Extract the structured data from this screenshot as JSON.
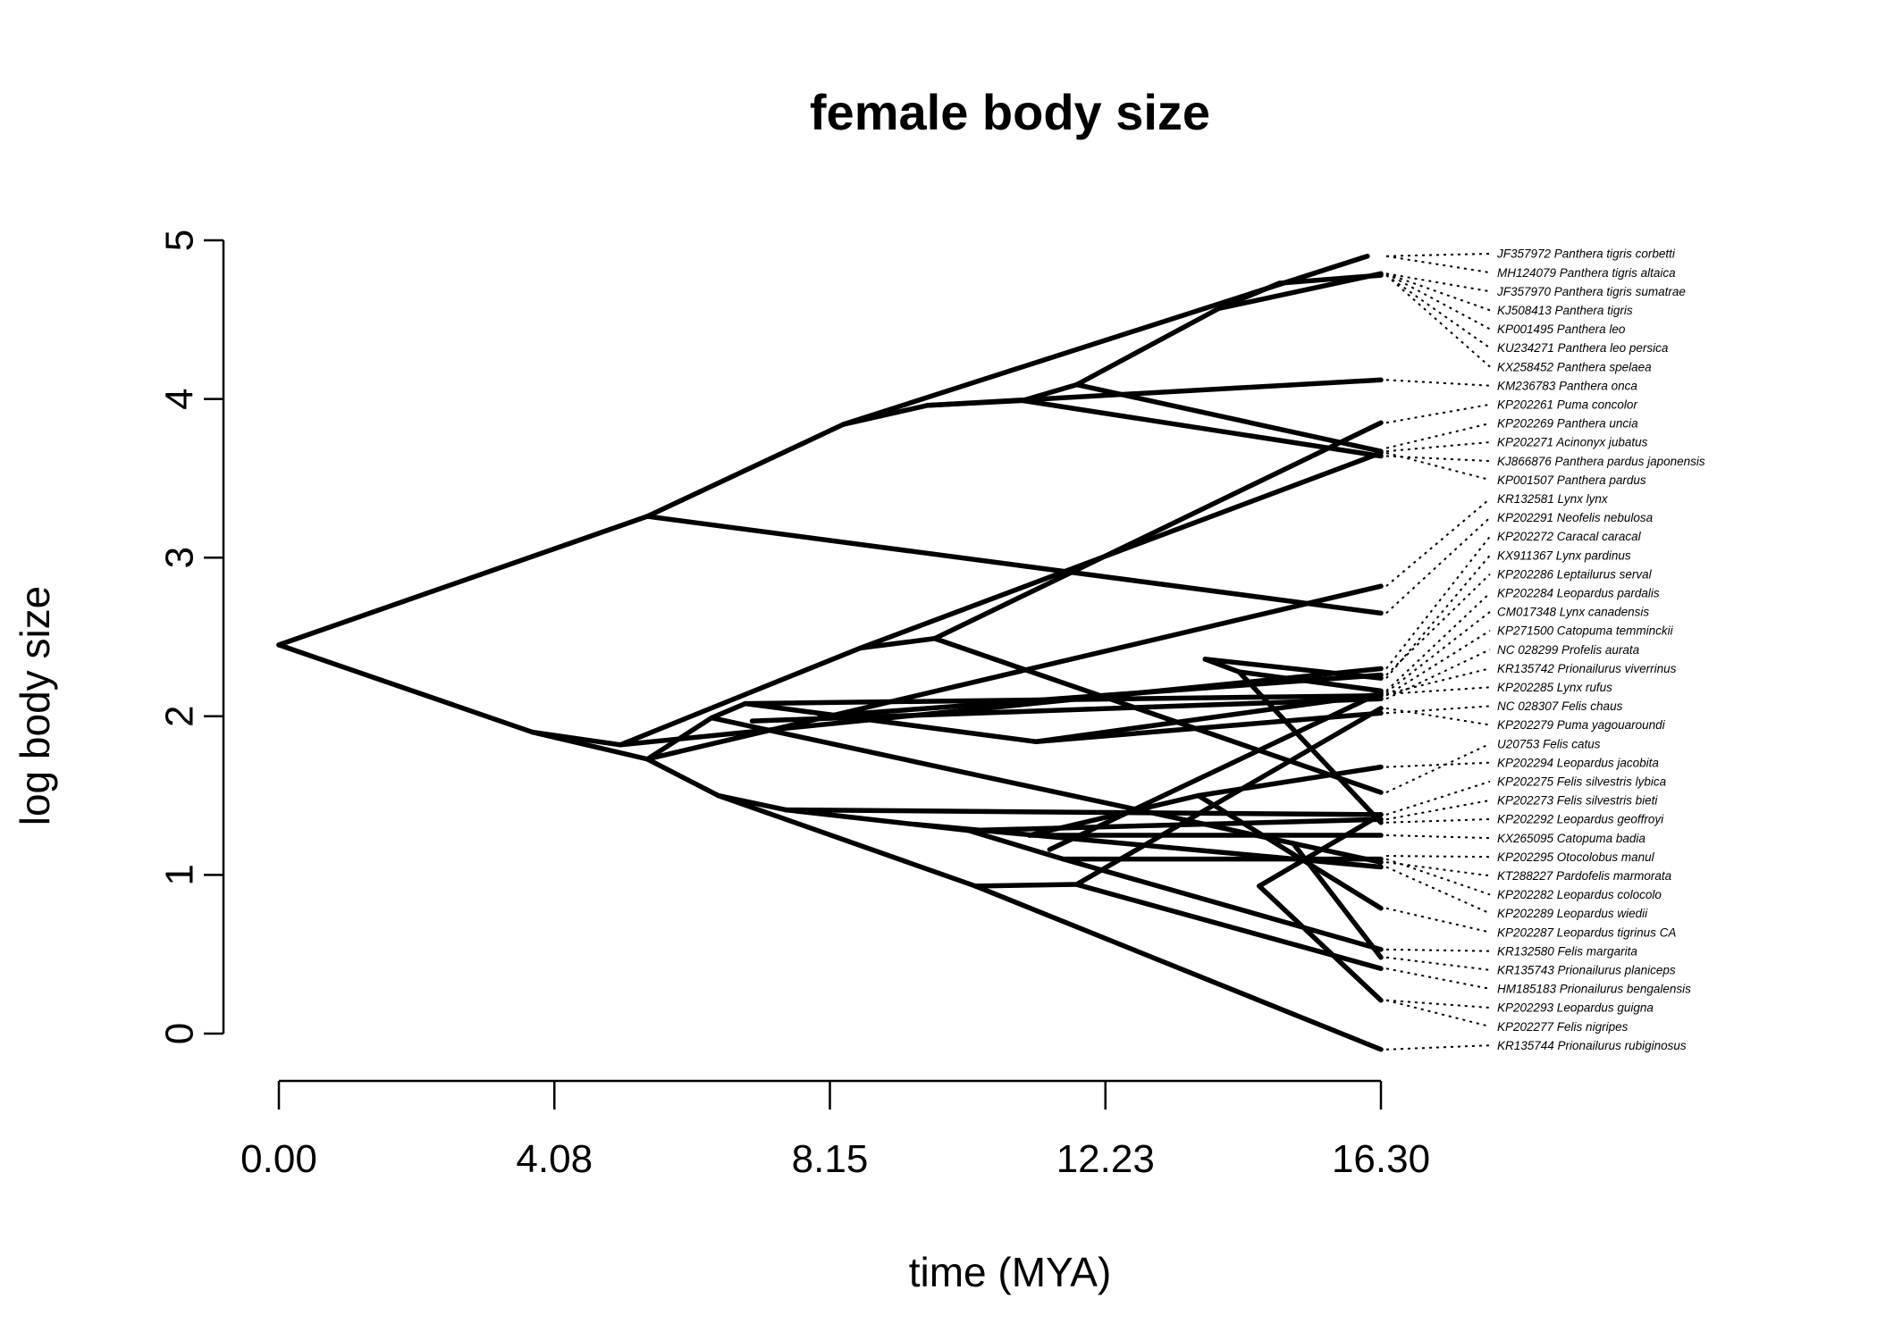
{
  "chart_data": {
    "type": "line",
    "title": "female body size",
    "xlabel": "time (MYA)",
    "ylabel": "log body size",
    "xlim": [
      0,
      16.3
    ],
    "ylim": [
      0,
      5
    ],
    "x_ticks": [
      "0.00",
      "4.08",
      "8.15",
      "12.23",
      "16.30"
    ],
    "y_ticks": [
      "0",
      "1",
      "2",
      "3",
      "4",
      "5"
    ],
    "tip_labels": [
      "JF357972 Panthera tigris corbetti",
      "MH124079 Panthera tigris altaica",
      "JF357970 Panthera tigris sumatrae",
      "KJ508413 Panthera tigris",
      "KP001495 Panthera leo",
      "KU234271 Panthera leo persica",
      "KX258452 Panthera spelaea",
      "KM236783 Panthera onca",
      "KP202261 Puma concolor",
      "KP202269 Panthera uncia",
      "KP202271 Acinonyx jubatus",
      "KJ866876 Panthera pardus japonensis",
      "KP001507 Panthera pardus",
      "KR132581 Lynx lynx",
      "KP202291 Neofelis nebulosa",
      "KP202272 Caracal caracal",
      "KX911367 Lynx pardinus",
      "KP202286 Leptailurus serval",
      "KP202284 Leopardus pardalis",
      "CM017348 Lynx canadensis",
      "KP271500 Catopuma temminckii",
      "NC 028299 Profelis aurata",
      "KR135742 Prionailurus viverrinus",
      "KP202285 Lynx rufus",
      "NC 028307 Felis chaus",
      "KP202279 Puma yagouaroundi",
      "U20753 Felis catus",
      "KP202294 Leopardus jacobita",
      "KP202275 Felis silvestris lybica",
      "KP202273 Felis silvestris bieti",
      "KP202292 Leopardus geoffroyi",
      "KX265095 Catopuma badia",
      "KP202295 Otocolobus manul",
      "KT288227 Pardofelis marmorata",
      "KP202282 Leopardus colocolo",
      "KP202289 Leopardus wiedii",
      "KP202287 Leopardus tigrinus CA",
      "KR132580 Felis margarita",
      "KR135743 Prionailurus planiceps",
      "HM185183 Prionailurus bengalensis",
      "KP202293 Leopardus guigna",
      "KP202277 Felis nigripes",
      "KR135744 Prionailurus rubiginosus"
    ],
    "tip_values": [
      4.9,
      4.9,
      4.79,
      4.79,
      4.79,
      4.78,
      4.78,
      4.12,
      3.85,
      3.69,
      3.67,
      3.64,
      3.66,
      2.82,
      2.65,
      2.3,
      2.24,
      2.26,
      2.16,
      2.15,
      2.13,
      2.11,
      2.14,
      2.14,
      2.02,
      2.05,
      1.52,
      1.68,
      1.38,
      1.35,
      1.33,
      1.25,
      1.12,
      1.08,
      1.1,
      1.05,
      0.79,
      0.53,
      0.48,
      0.41,
      0.21,
      0.21,
      -0.1
    ],
    "tip_x": 16.3,
    "branches": [
      [
        [
          0.0,
          2.45
        ],
        [
          5.45,
          3.26
        ]
      ],
      [
        [
          0.0,
          2.45
        ],
        [
          3.75,
          1.9
        ]
      ],
      [
        [
          5.45,
          3.26
        ],
        [
          8.35,
          3.84
        ]
      ],
      [
        [
          5.45,
          3.26
        ],
        [
          16.3,
          2.65
        ]
      ],
      [
        [
          8.35,
          3.84
        ],
        [
          16.1,
          4.9
        ]
      ],
      [
        [
          8.35,
          3.84
        ],
        [
          9.6,
          3.96
        ]
      ],
      [
        [
          9.6,
          3.96
        ],
        [
          11.0,
          3.99
        ]
      ],
      [
        [
          9.6,
          3.96
        ],
        [
          16.3,
          4.12
        ]
      ],
      [
        [
          11.0,
          3.99
        ],
        [
          11.8,
          4.09
        ]
      ],
      [
        [
          11.0,
          3.99
        ],
        [
          16.3,
          3.64
        ]
      ],
      [
        [
          11.8,
          4.09
        ],
        [
          16.3,
          3.67
        ]
      ],
      [
        [
          11.8,
          4.09
        ],
        [
          13.9,
          4.57
        ]
      ],
      [
        [
          13.9,
          4.57
        ],
        [
          16.3,
          4.79
        ]
      ],
      [
        [
          13.9,
          4.57
        ],
        [
          14.8,
          4.73
        ]
      ],
      [
        [
          14.8,
          4.73
        ],
        [
          16.3,
          4.78
        ]
      ],
      [
        [
          3.75,
          1.9
        ],
        [
          5.05,
          1.82
        ]
      ],
      [
        [
          3.75,
          1.9
        ],
        [
          5.45,
          1.73
        ]
      ],
      [
        [
          5.05,
          1.82
        ],
        [
          8.6,
          2.43
        ]
      ],
      [
        [
          5.05,
          1.82
        ],
        [
          16.3,
          2.3
        ]
      ],
      [
        [
          8.6,
          2.43
        ],
        [
          9.7,
          2.49
        ]
      ],
      [
        [
          8.6,
          2.43
        ],
        [
          16.3,
          3.66
        ]
      ],
      [
        [
          9.7,
          2.49
        ],
        [
          16.3,
          3.85
        ]
      ],
      [
        [
          9.7,
          2.49
        ],
        [
          16.3,
          1.52
        ]
      ],
      [
        [
          5.45,
          1.73
        ],
        [
          6.4,
          1.99
        ]
      ],
      [
        [
          5.45,
          1.73
        ],
        [
          6.5,
          1.5
        ]
      ],
      [
        [
          5.45,
          1.73
        ],
        [
          16.3,
          2.82
        ]
      ],
      [
        [
          6.4,
          1.99
        ],
        [
          6.9,
          2.08
        ]
      ],
      [
        [
          6.4,
          1.99
        ],
        [
          16.3,
          1.08
        ]
      ],
      [
        [
          6.9,
          2.08
        ],
        [
          11.2,
          1.84
        ]
      ],
      [
        [
          6.9,
          2.08
        ],
        [
          16.3,
          2.13
        ]
      ],
      [
        [
          11.2,
          1.84
        ],
        [
          16.3,
          2.14
        ]
      ],
      [
        [
          11.2,
          1.84
        ],
        [
          16.3,
          2.02
        ]
      ],
      [
        [
          6.5,
          1.5
        ],
        [
          7.5,
          1.41
        ]
      ],
      [
        [
          6.5,
          1.5
        ],
        [
          10.3,
          0.93
        ]
      ],
      [
        [
          7.5,
          1.41
        ],
        [
          10.2,
          1.28
        ]
      ],
      [
        [
          7.5,
          1.41
        ],
        [
          16.3,
          1.38
        ]
      ],
      [
        [
          10.2,
          1.28
        ],
        [
          16.3,
          1.35
        ]
      ],
      [
        [
          10.2,
          1.28
        ],
        [
          11.6,
          1.1
        ]
      ],
      [
        [
          11.6,
          1.1
        ],
        [
          16.3,
          0.53
        ]
      ],
      [
        [
          11.6,
          1.1
        ],
        [
          16.3,
          1.1
        ]
      ],
      [
        [
          10.3,
          0.93
        ],
        [
          16.3,
          -0.1
        ]
      ],
      [
        [
          10.3,
          0.93
        ],
        [
          11.8,
          0.94
        ]
      ],
      [
        [
          11.8,
          0.94
        ],
        [
          16.3,
          2.05
        ]
      ],
      [
        [
          11.8,
          0.94
        ],
        [
          16.3,
          0.41
        ]
      ],
      [
        [
          13.7,
          2.36
        ],
        [
          16.3,
          2.24
        ]
      ],
      [
        [
          13.7,
          2.36
        ],
        [
          14.2,
          2.28
        ]
      ],
      [
        [
          14.2,
          2.28
        ],
        [
          16.3,
          2.16
        ]
      ],
      [
        [
          14.2,
          2.28
        ],
        [
          16.3,
          1.33
        ]
      ],
      [
        [
          11.1,
          1.25
        ],
        [
          16.3,
          1.25
        ]
      ],
      [
        [
          11.1,
          1.25
        ],
        [
          13.6,
          1.5
        ]
      ],
      [
        [
          13.6,
          1.5
        ],
        [
          16.3,
          1.68
        ]
      ],
      [
        [
          13.6,
          1.5
        ],
        [
          16.3,
          0.79
        ]
      ],
      [
        [
          14.5,
          0.93
        ],
        [
          16.3,
          0.21
        ]
      ],
      [
        [
          14.5,
          0.93
        ],
        [
          16.3,
          1.38
        ]
      ],
      [
        [
          7.0,
          1.97
        ],
        [
          16.3,
          2.11
        ]
      ],
      [
        [
          8.0,
          2.0
        ],
        [
          16.3,
          2.26
        ]
      ],
      [
        [
          9.4,
          1.32
        ],
        [
          16.3,
          1.05
        ]
      ],
      [
        [
          11.4,
          1.16
        ],
        [
          16.3,
          2.15
        ]
      ],
      [
        [
          15.0,
          1.2
        ],
        [
          16.3,
          0.48
        ]
      ]
    ]
  }
}
